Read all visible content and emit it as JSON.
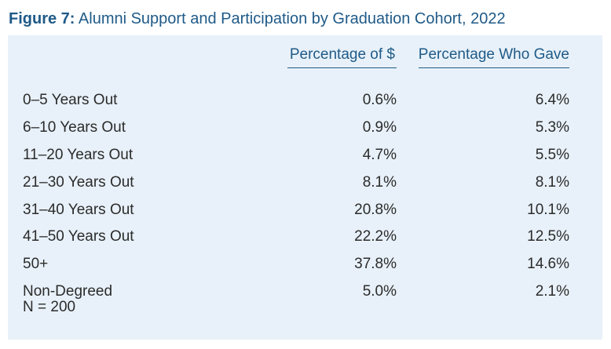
{
  "figure": {
    "number": "Figure 7:",
    "title": "Alumni Support and Participation by Graduation Cohort, 2022"
  },
  "colors": {
    "title": "#1f5a88",
    "panel_background": "#e8f1f9",
    "text": "#2b2b2b"
  },
  "chart_data": {
    "type": "table",
    "columns": [
      "Percentage of $",
      "Percentage Who Gave"
    ],
    "rows": [
      {
        "label": "0–5 Years Out",
        "pct_dollars": "0.6%",
        "pct_gave": "6.4%"
      },
      {
        "label": "6–10 Years Out",
        "pct_dollars": "0.9%",
        "pct_gave": "5.3%"
      },
      {
        "label": "11–20 Years Out",
        "pct_dollars": "4.7%",
        "pct_gave": "5.5%"
      },
      {
        "label": "21–30 Years Out",
        "pct_dollars": "8.1%",
        "pct_gave": "8.1%"
      },
      {
        "label": "31–40 Years Out",
        "pct_dollars": "20.8%",
        "pct_gave": "10.1%"
      },
      {
        "label": "41–50 Years Out",
        "pct_dollars": "22.2%",
        "pct_gave": "12.5%"
      },
      {
        "label": "50+",
        "pct_dollars": "37.8%",
        "pct_gave": "14.6%"
      },
      {
        "label": "Non-Degreed",
        "pct_dollars": "5.0%",
        "pct_gave": "2.1%"
      }
    ],
    "note": "N = 200"
  }
}
